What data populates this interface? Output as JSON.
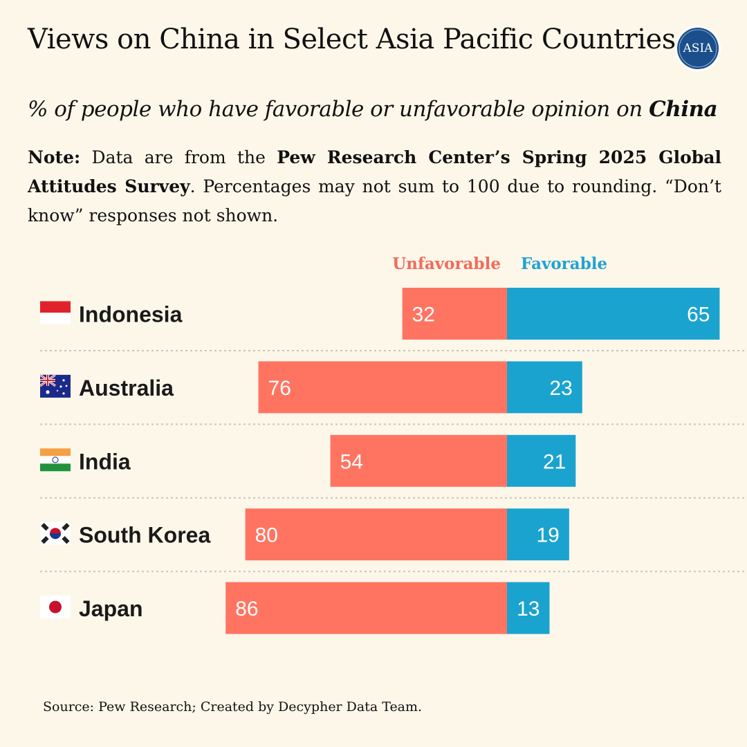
{
  "header": {
    "title": "Views on China in Select Asia Pacific Countries",
    "logo_text": "ASIA"
  },
  "subtitle": {
    "prefix": "% of people who have favorable or unfavorable opinion on ",
    "emphasis": "China"
  },
  "note": {
    "label": "Note:",
    "text1": " Data are from the ",
    "bold": "Pew Research Center’s Spring 2025 Global Attitudes Survey",
    "text2": ". Percentages may not sum to 100 due to rounding. “Don’t know” responses not shown."
  },
  "source": "Source: Pew Research; Created by Decypher Data Team.",
  "colors": {
    "unfavorable": "#ff7461",
    "favorable": "#1ba3cf",
    "background": "#fdf7ea"
  },
  "chart_data": {
    "type": "bar",
    "orientation": "horizontal-diverging",
    "categories": [
      "Indonesia",
      "Australia",
      "India",
      "South Korea",
      "Japan"
    ],
    "flags": [
      "indonesia-flag-icon",
      "australia-flag-icon",
      "india-flag-icon",
      "south-korea-flag-icon",
      "japan-flag-icon"
    ],
    "series": [
      {
        "name": "Unfavorable",
        "values": [
          32,
          76,
          54,
          80,
          86
        ]
      },
      {
        "name": "Favorable",
        "values": [
          65,
          23,
          21,
          19,
          13
        ]
      }
    ],
    "legend": "top-center",
    "grid": false
  }
}
